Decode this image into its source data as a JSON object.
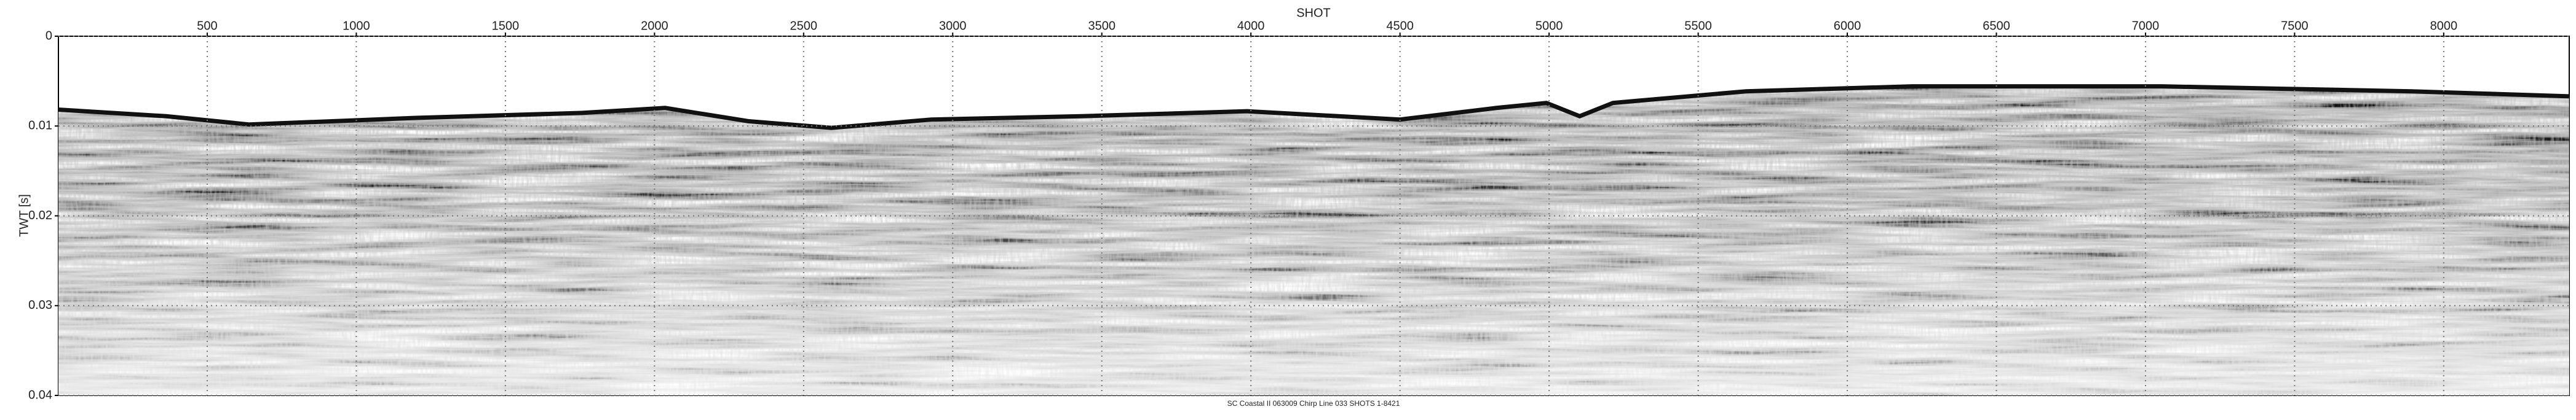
{
  "chart_data": {
    "type": "seismic",
    "caption": "SC Coastal II 063009 Chirp Line 033 SHOTS 1-8421",
    "x_label": "SHOT",
    "y_label": "TWT [s]",
    "xlim": [
      1,
      8421
    ],
    "xticks": [
      500,
      1000,
      1500,
      2000,
      2500,
      3000,
      3500,
      4000,
      4500,
      5000,
      5500,
      6000,
      6500,
      7000,
      7500,
      8000
    ],
    "ylim": [
      0,
      0.04
    ],
    "yticks": [
      0,
      0.01,
      0.02,
      0.03,
      0.04
    ],
    "y_reversed": true,
    "grid": true
  }
}
